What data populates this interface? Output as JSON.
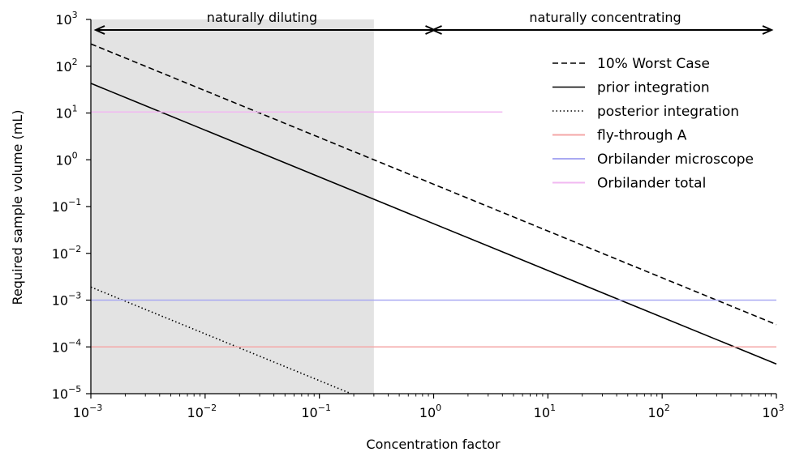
{
  "chart_data": {
    "type": "line",
    "xlabel": "Concentration factor",
    "ylabel": "Required sample volume (mL)",
    "xscale": "log",
    "yscale": "log",
    "xlim": [
      0.001,
      1000
    ],
    "ylim": [
      1e-05,
      1000
    ],
    "xticks": [
      {
        "base": "10",
        "exp": "−3",
        "value": 0.001
      },
      {
        "base": "10",
        "exp": "−2",
        "value": 0.01
      },
      {
        "base": "10",
        "exp": "−1",
        "value": 0.1
      },
      {
        "base": "10",
        "exp": "0",
        "value": 1
      },
      {
        "base": "10",
        "exp": "1",
        "value": 10
      },
      {
        "base": "10",
        "exp": "2",
        "value": 100
      },
      {
        "base": "10",
        "exp": "3",
        "value": 1000
      }
    ],
    "yticks": [
      {
        "base": "10",
        "exp": "−5",
        "value": 1e-05
      },
      {
        "base": "10",
        "exp": "−4",
        "value": 0.0001
      },
      {
        "base": "10",
        "exp": "−3",
        "value": 0.001
      },
      {
        "base": "10",
        "exp": "−2",
        "value": 0.01
      },
      {
        "base": "10",
        "exp": "−1",
        "value": 0.1
      },
      {
        "base": "10",
        "exp": "0",
        "value": 1
      },
      {
        "base": "10",
        "exp": "1",
        "value": 10
      },
      {
        "base": "10",
        "exp": "2",
        "value": 100
      },
      {
        "base": "10",
        "exp": "3",
        "value": 1000
      }
    ],
    "shaded_region": {
      "x": [
        0.001,
        0.3
      ],
      "color": "#e3e3e3"
    },
    "regions": [
      {
        "label": "naturally diluting",
        "x": [
          0.001,
          1
        ]
      },
      {
        "label": "naturally concentrating",
        "x": [
          1,
          1000
        ]
      }
    ],
    "series": [
      {
        "name": "10% Worst Case",
        "style": "dashed",
        "color": "#000000",
        "x": [
          0.001,
          1000
        ],
        "y": [
          300,
          0.0003
        ]
      },
      {
        "name": "prior integration",
        "style": "solid",
        "color": "#000000",
        "x": [
          0.001,
          1000
        ],
        "y": [
          43,
          4.3e-05
        ]
      },
      {
        "name": "posterior integration",
        "style": "dotted",
        "color": "#000000",
        "x": [
          0.001,
          0.19
        ],
        "y": [
          0.0019,
          1e-05
        ]
      },
      {
        "name": "fly-through A",
        "style": "solid",
        "color": "#f4a7a7",
        "x": [
          0.001,
          1000
        ],
        "y": [
          0.0001,
          0.0001
        ]
      },
      {
        "name": "Orbilander microscope",
        "style": "solid",
        "color": "#a9a9f2",
        "x": [
          0.001,
          1000
        ],
        "y": [
          0.001,
          0.001
        ]
      },
      {
        "name": "Orbilander total",
        "style": "solid",
        "color": "#f2b8f2",
        "x": [
          0.001,
          4
        ],
        "y": [
          10.5,
          10.5
        ]
      }
    ],
    "legend": "top-right",
    "grid": false
  }
}
